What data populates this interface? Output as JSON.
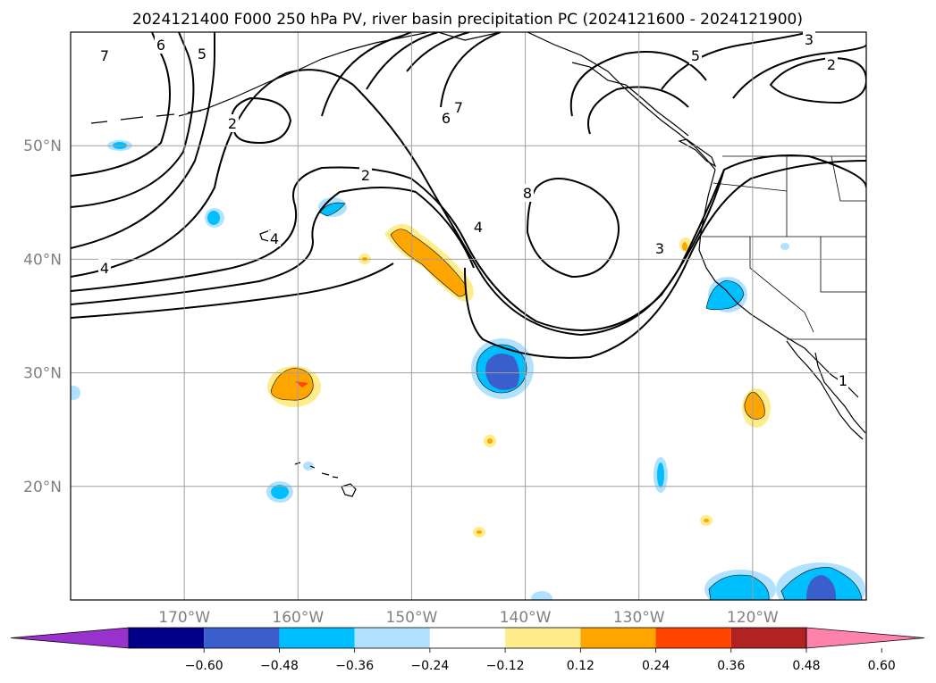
{
  "title": "2024121400 F000 250 hPa PV, river basin precipitation PC (2024121600 - 2024121900)",
  "map": {
    "projection": "PlateCarree",
    "lon_range": [
      -180,
      -110
    ],
    "lat_range": [
      10,
      60
    ],
    "gridlines": true,
    "lon_ticks": [
      {
        "lon": -170,
        "label": "170°W"
      },
      {
        "lon": -160,
        "label": "160°W"
      },
      {
        "lon": -150,
        "label": "150°W"
      },
      {
        "lon": -140,
        "label": "140°W"
      },
      {
        "lon": -130,
        "label": "130°W"
      },
      {
        "lon": -120,
        "label": "120°W"
      }
    ],
    "lat_ticks": [
      {
        "lat": 20,
        "label": "20°N"
      },
      {
        "lat": 30,
        "label": "30°N"
      },
      {
        "lat": 40,
        "label": "40°N"
      },
      {
        "lat": 50,
        "label": "50°N"
      }
    ],
    "contour_labels": [
      "7",
      "6",
      "5",
      "2",
      "2",
      "4",
      "4",
      "8",
      "7",
      "6",
      "5",
      "3",
      "2",
      "4",
      "3",
      "1"
    ]
  },
  "colorbar": {
    "colors": [
      "#9932cc",
      "#00008b",
      "#3a5fcd",
      "#00bfff",
      "#b0e2ff",
      "#ffffff",
      "#ffec8b",
      "#ffa500",
      "#ff4500",
      "#b22222",
      "#ff82ab"
    ],
    "tick_labels": [
      "−0.60",
      "−0.48",
      "−0.36",
      "−0.24",
      "−0.12",
      "0.12",
      "0.24",
      "0.36",
      "0.48",
      "0.60"
    ],
    "extend": "both"
  }
}
